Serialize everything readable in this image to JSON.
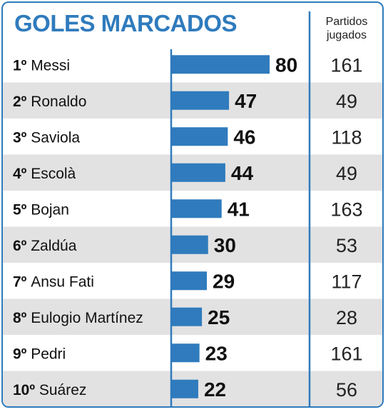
{
  "title": "GOLES MARCADOS",
  "column_header": {
    "line1": "Partidos",
    "line2": "jugados"
  },
  "colors": {
    "accent": "#2f7bbd",
    "stripe": "#e2e2e2",
    "text": "#111111"
  },
  "chart_data": {
    "type": "bar",
    "orientation": "horizontal",
    "title": "GOLES MARCADOS",
    "categories": [
      "1º Messi",
      "2º Ronaldo",
      "3º Saviola",
      "4º Escolà",
      "5º Bojan",
      "6º Zaldúa",
      "7º Ansu Fati",
      "8º Eulogio Martínez",
      "9º Pedri",
      "10º Suárez"
    ],
    "rows": [
      {
        "rank": "1º",
        "name": "Messi",
        "goals": 80,
        "matches": 161
      },
      {
        "rank": "2º",
        "name": "Ronaldo",
        "goals": 47,
        "matches": 49
      },
      {
        "rank": "3º",
        "name": "Saviola",
        "goals": 46,
        "matches": 118
      },
      {
        "rank": "4º",
        "name": "Escolà",
        "goals": 44,
        "matches": 49
      },
      {
        "rank": "5º",
        "name": "Bojan",
        "goals": 41,
        "matches": 163
      },
      {
        "rank": "6º",
        "name": "Zaldúa",
        "goals": 30,
        "matches": 53
      },
      {
        "rank": "7º",
        "name": "Ansu Fati",
        "goals": 29,
        "matches": 117
      },
      {
        "rank": "8º",
        "name": "Eulogio Martínez",
        "goals": 25,
        "matches": 28
      },
      {
        "rank": "9º",
        "name": "Pedri",
        "goals": 23,
        "matches": 161
      },
      {
        "rank": "10º",
        "name": "Suárez",
        "goals": 22,
        "matches": 56
      }
    ],
    "values": [
      80,
      47,
      46,
      44,
      41,
      30,
      29,
      25,
      23,
      22
    ],
    "xlim": [
      0,
      80
    ],
    "grid": false,
    "legend": "none"
  }
}
